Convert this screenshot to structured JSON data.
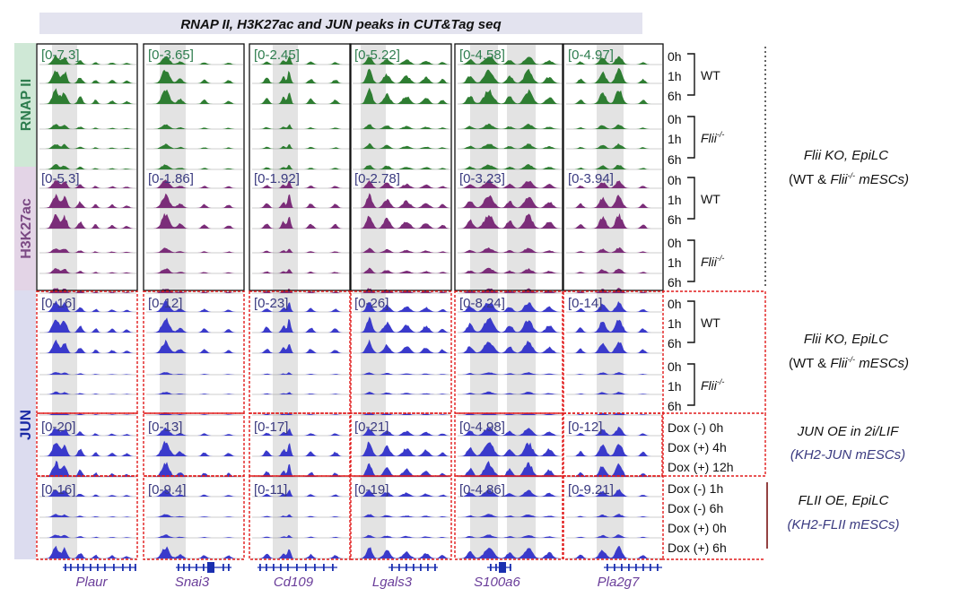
{
  "title": "RNAP II, H3K27ac and JUN peaks in CUT&Tag seq",
  "colors": {
    "title_bar": "#e3e3ef",
    "rnap": "#2e7d32",
    "rnap_band": "#cfe8d6",
    "rnap_text": "#2e7d4e",
    "h3k": "#7b2d79",
    "h3k_band": "#e3d4e6",
    "h3k_text": "#7b4a84",
    "jun": "#3a3acb",
    "jun_band": "#dcdcef",
    "jun_text": "#1b2aa6",
    "range_text": "#3a3a80",
    "dashed": "#e01b1b",
    "gene": "#1a2fb0",
    "gene_label": "#6a3d9a",
    "highlight": "#e3e3e3"
  },
  "mark_groups": [
    {
      "label": "RNAP II",
      "key": "rnap"
    },
    {
      "label": "H3K27ac",
      "key": "h3k"
    },
    {
      "label": "JUN",
      "key": "jun"
    }
  ],
  "genes": [
    "Plaur",
    "Snai3",
    "Cd109",
    "Lgals3",
    "S100a6",
    "Pla2g7"
  ],
  "ranges": {
    "rnap": [
      "[0-7.3]",
      "[0-3.65]",
      "[0-2.45]",
      "[0-5.22]",
      "[0-4.58]",
      "[0-4.97]"
    ],
    "h3k": [
      "[0-5.3]",
      "[0-1.86]",
      "[0-1.92]",
      "[0-2.78]",
      "[0-3.23]",
      "[0-3.94]"
    ],
    "jun_ko": [
      "[0-16]",
      "[0-12]",
      "[0-23]",
      "[0-26]",
      "[0-8.24]",
      "[0-14]"
    ],
    "jun_oe": [
      "[0-20]",
      "[0-13]",
      "[0-17]",
      "[0-21]",
      "[0-4.98]",
      "[0-12]"
    ],
    "flii_oe": [
      "[0-16]",
      "[0-9.4]",
      "[0-11]",
      "[0-19]",
      "[0-4.86]",
      "[0-9.21]"
    ]
  },
  "time_labels": {
    "ko": [
      "0h",
      "1h",
      "6h"
    ],
    "wt": "WT",
    "flii_mut": "Flii",
    "flii_mut_sup": "-/-",
    "jun_oe": [
      "Dox (-) 0h",
      "Dox (+) 4h",
      "Dox (+) 12h"
    ],
    "flii_oe": [
      "Dox (-) 1h",
      "Dox (-) 6h",
      "Dox (+) 0h",
      "Dox (+) 6h"
    ]
  },
  "conditions": {
    "ko_title": "Flii KO, EpiLC",
    "ko_sub_a": "(WT & ",
    "ko_sub_b": "Flii",
    "ko_sub_sup": "-/-",
    "ko_sub_c": " mESCs)",
    "jun_oe_title": "JUN OE in 2i/LIF",
    "jun_oe_sub": "(KH2-JUN mESCs)",
    "flii_oe_title": "FLII OE, EpiLC",
    "flii_oe_sub": "(KH2-FLII mESCs)"
  }
}
